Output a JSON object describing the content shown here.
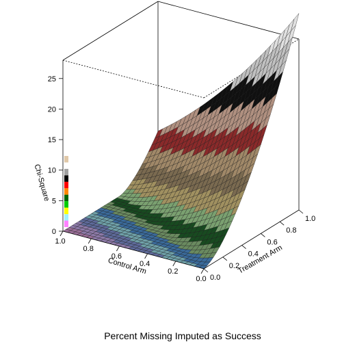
{
  "chart_data": {
    "type": "surface3d",
    "title": "Percent Missing Imputed as Success",
    "zlabel": "Chi-Square",
    "xlabel": "Control Arm",
    "ylabel": "Treatment Arm",
    "x_ticks": [
      "1.0",
      "0.8",
      "0.6",
      "0.4",
      "0.2",
      "0.0"
    ],
    "y_ticks": [
      "0.0",
      "0.2",
      "0.4",
      "0.6",
      "0.8",
      "1.0"
    ],
    "z_ticks": [
      "0",
      "5",
      "10",
      "15",
      "20",
      "25"
    ],
    "xlim": [
      0,
      1
    ],
    "ylim": [
      0,
      1
    ],
    "zlim": [
      0,
      28
    ],
    "surface": {
      "x": [
        0.0,
        0.2,
        0.4,
        0.6,
        0.8,
        1.0
      ],
      "y": [
        0.0,
        0.2,
        0.4,
        0.6,
        0.8,
        1.0
      ],
      "z_at_corners": {
        "control_0_treatment_0": 0,
        "control_1_treatment_0": 0,
        "control_0_treatment_1": 28,
        "control_1_treatment_1": 0
      }
    },
    "color_legend": [
      "#ff80ff",
      "#a0f0ff",
      "#ffff00",
      "#00cc00",
      "#006600",
      "#ff8800",
      "#ff0000",
      "#000000",
      "#a0a0a0",
      "#ffffff",
      "#e0c8a8"
    ],
    "grid": false,
    "legend_position": "left"
  }
}
